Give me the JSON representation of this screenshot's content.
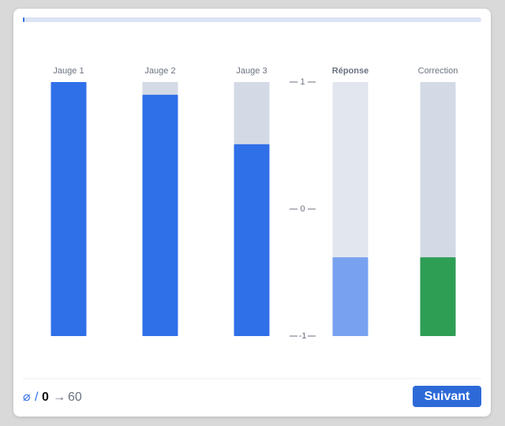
{
  "gauges": [
    {
      "label": "Jauge 1",
      "value": 1
    },
    {
      "label": "Jauge 2",
      "value": 0.9
    },
    {
      "label": "Jauge 3",
      "value": 0.51
    }
  ],
  "answer": {
    "label": "Réponse",
    "value": -0.38
  },
  "correction": {
    "label": "Correction",
    "value": -0.38
  },
  "scale": {
    "range": [
      -1,
      1
    ],
    "ticks": [
      1,
      0,
      -1
    ]
  },
  "footer": {
    "symbol": "⌀",
    "separator": "/",
    "score": 0,
    "arrow": "→",
    "target": 60,
    "button": "Suivant"
  }
}
